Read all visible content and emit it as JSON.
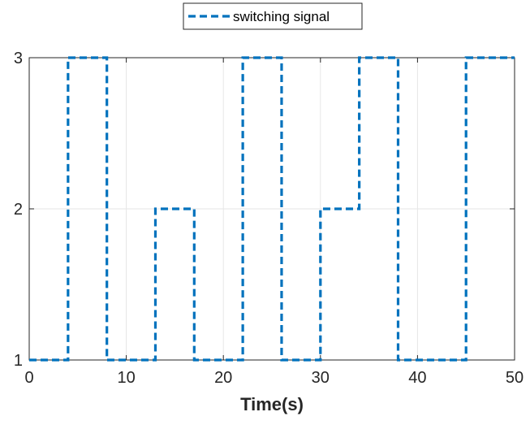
{
  "chart_data": {
    "type": "line",
    "title": "",
    "xlabel": "Time(s)",
    "ylabel": "",
    "xlim": [
      0,
      50
    ],
    "ylim": [
      1,
      3
    ],
    "xticks": [
      0,
      10,
      20,
      30,
      40,
      50
    ],
    "xtick_labels": [
      "0",
      "10",
      "20",
      "30",
      "40",
      "50"
    ],
    "yticks": [
      1,
      2,
      3
    ],
    "ytick_labels": [
      "1",
      "2",
      "3"
    ],
    "grid": true,
    "legend": {
      "position": "top-center",
      "entries": [
        "switching signal"
      ]
    },
    "series": [
      {
        "name": "switching signal",
        "color": "#0072BD",
        "line_style": "dashed",
        "step": true,
        "x": [
          0,
          4,
          8,
          13,
          17,
          22,
          26,
          30,
          34,
          38,
          45,
          50
        ],
        "y": [
          1,
          3,
          1,
          2,
          1,
          3,
          1,
          2,
          3,
          1,
          3,
          3
        ]
      }
    ]
  }
}
